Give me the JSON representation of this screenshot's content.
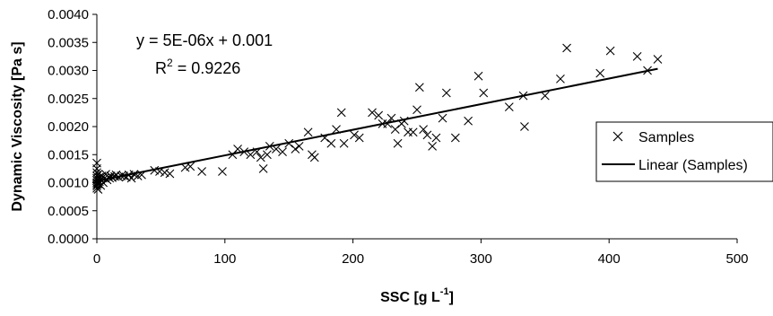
{
  "chart_data": {
    "type": "scatter",
    "xlabel": "SSC [g L",
    "xlabel_unit_superscript": "-1",
    "xlabel_close": "]",
    "ylabel": "Dynamic Viscosity [Pa s]",
    "xlim": [
      0,
      500
    ],
    "ylim": [
      0,
      0.004
    ],
    "xticks": [
      "0",
      "100",
      "200",
      "300",
      "400",
      "500"
    ],
    "yticks": [
      "0.0000",
      "0.0005",
      "0.0010",
      "0.0015",
      "0.0020",
      "0.0025",
      "0.0030",
      "0.0035",
      "0.0040"
    ],
    "grid": false,
    "legend_position": "right",
    "annotation": {
      "equation": "y = 5E-06x + 0.001",
      "r2_prefix": "R",
      "r2_superscript": "2",
      "r2_value": " = 0.9226"
    },
    "series": [
      {
        "name": "Samples",
        "marker": "x",
        "color": "#000000",
        "points": [
          [
            0,
            0.00135
          ],
          [
            0,
            0.00125
          ],
          [
            0,
            0.00118
          ],
          [
            0,
            0.00112
          ],
          [
            0,
            0.00108
          ],
          [
            0,
            0.00104
          ],
          [
            0,
            0.001
          ],
          [
            0,
            0.00097
          ],
          [
            0,
            0.00094
          ],
          [
            0,
            0.0009
          ],
          [
            1,
            0.00115
          ],
          [
            1,
            0.00098
          ],
          [
            1,
            0.00088
          ],
          [
            2,
            0.0011
          ],
          [
            2,
            0.00102
          ],
          [
            3,
            0.00106
          ],
          [
            3,
            0.00095
          ],
          [
            4,
            0.00112
          ],
          [
            5,
            0.001
          ],
          [
            6,
            0.00108
          ],
          [
            7,
            0.00115
          ],
          [
            8,
            0.00105
          ],
          [
            9,
            0.0011
          ],
          [
            10,
            0.00108
          ],
          [
            11,
            0.00112
          ],
          [
            12,
            0.00109
          ],
          [
            14,
            0.00111
          ],
          [
            15,
            0.00114
          ],
          [
            17,
            0.0011
          ],
          [
            19,
            0.00112
          ],
          [
            21,
            0.00112
          ],
          [
            23,
            0.0011
          ],
          [
            25,
            0.00114
          ],
          [
            27,
            0.00108
          ],
          [
            29,
            0.00115
          ],
          [
            32,
            0.00112
          ],
          [
            35,
            0.00114
          ],
          [
            45,
            0.00122
          ],
          [
            49,
            0.0012
          ],
          [
            53,
            0.00118
          ],
          [
            57,
            0.00116
          ],
          [
            69,
            0.00127
          ],
          [
            73,
            0.00129
          ],
          [
            82,
            0.0012
          ],
          [
            98,
            0.0012
          ],
          [
            106,
            0.0015
          ],
          [
            110,
            0.0016
          ],
          [
            115,
            0.00155
          ],
          [
            120,
            0.0015
          ],
          [
            125,
            0.00155
          ],
          [
            128,
            0.00145
          ],
          [
            130,
            0.00125
          ],
          [
            133,
            0.0015
          ],
          [
            135,
            0.00165
          ],
          [
            140,
            0.0016
          ],
          [
            145,
            0.00155
          ],
          [
            150,
            0.0017
          ],
          [
            155,
            0.0016
          ],
          [
            158,
            0.00165
          ],
          [
            165,
            0.0019
          ],
          [
            168,
            0.0015
          ],
          [
            170,
            0.00145
          ],
          [
            178,
            0.0018
          ],
          [
            183,
            0.0017
          ],
          [
            187,
            0.00195
          ],
          [
            191,
            0.00225
          ],
          [
            193,
            0.0017
          ],
          [
            201,
            0.00185
          ],
          [
            205,
            0.0018
          ],
          [
            215,
            0.00225
          ],
          [
            220,
            0.0022
          ],
          [
            223,
            0.00205
          ],
          [
            227,
            0.00205
          ],
          [
            230,
            0.00215
          ],
          [
            233,
            0.00195
          ],
          [
            235,
            0.0017
          ],
          [
            238,
            0.00205
          ],
          [
            240,
            0.0021
          ],
          [
            243,
            0.0019
          ],
          [
            247,
            0.0019
          ],
          [
            250,
            0.0023
          ],
          [
            252,
            0.0027
          ],
          [
            255,
            0.00195
          ],
          [
            258,
            0.00185
          ],
          [
            262,
            0.00165
          ],
          [
            265,
            0.0018
          ],
          [
            270,
            0.00215
          ],
          [
            273,
            0.0026
          ],
          [
            280,
            0.0018
          ],
          [
            290,
            0.0021
          ],
          [
            298,
            0.0029
          ],
          [
            302,
            0.0026
          ],
          [
            322,
            0.00235
          ],
          [
            333,
            0.00255
          ],
          [
            334,
            0.002
          ],
          [
            350,
            0.00255
          ],
          [
            362,
            0.00285
          ],
          [
            367,
            0.0034
          ],
          [
            393,
            0.00295
          ],
          [
            401,
            0.00335
          ],
          [
            422,
            0.00325
          ],
          [
            430,
            0.003
          ],
          [
            438,
            0.0032
          ]
        ]
      },
      {
        "name": "Linear (Samples)",
        "type": "line",
        "color": "#000000",
        "x": [
          0,
          438
        ],
        "y": [
          0.00103,
          0.00303
        ]
      }
    ]
  }
}
